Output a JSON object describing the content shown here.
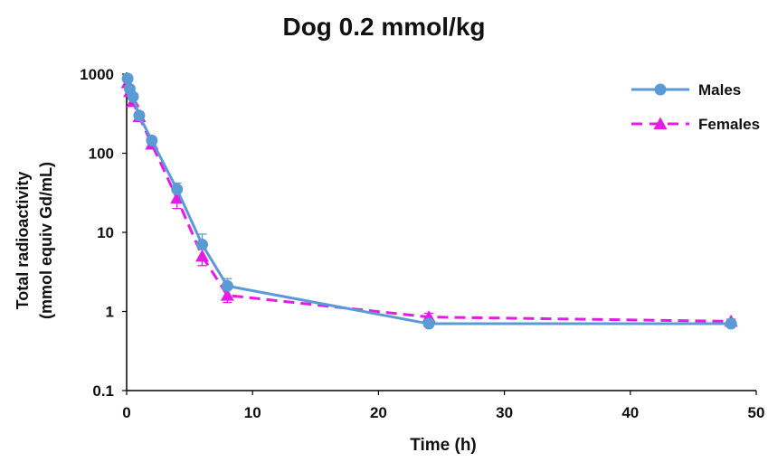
{
  "colors": {
    "males": "#5b9bd5",
    "females": "#e31ce3",
    "axis": "#000000"
  },
  "chart_data": {
    "type": "line",
    "title": "Dog 0.2 mmol/kg",
    "xlabel": "Time (h)",
    "ylabel_lines": [
      "Total radioactivity",
      "(mmol equiv Gd/mL)"
    ],
    "xlim": [
      0,
      50
    ],
    "ylim": [
      0.1,
      1000
    ],
    "yscale": "log",
    "x_ticks": [
      "0",
      "10",
      "20",
      "30",
      "40",
      "50"
    ],
    "y_ticks": [
      "0.1",
      "1",
      "10",
      "100",
      "1000"
    ],
    "grid": false,
    "legend_position": "top-right",
    "series": [
      {
        "name": "Males",
        "marker": "circle",
        "line_style": "solid",
        "color": "#5b9bd5",
        "x": [
          0.08,
          0.25,
          0.5,
          1,
          2,
          4,
          6,
          8,
          24,
          48
        ],
        "y": [
          880,
          650,
          520,
          300,
          145,
          35,
          7,
          2.1,
          0.7,
          0.7
        ],
        "error_high": [
          null,
          null,
          null,
          null,
          150,
          42,
          9.5,
          2.6,
          0.78,
          0.76
        ]
      },
      {
        "name": "Females",
        "marker": "triangle",
        "line_style": "dashed",
        "color": "#e31ce3",
        "x": [
          0.08,
          0.25,
          0.5,
          1,
          2,
          4,
          6,
          8,
          24,
          48
        ],
        "y": [
          780,
          600,
          450,
          290,
          130,
          27,
          5,
          1.6,
          0.85,
          0.75
        ],
        "error_low": [
          null,
          null,
          null,
          null,
          null,
          20,
          3.8,
          1.3,
          0.72,
          0.7
        ],
        "error_high": [
          null,
          null,
          null,
          null,
          null,
          33,
          6.2,
          1.9,
          0.95,
          0.8
        ]
      }
    ]
  }
}
